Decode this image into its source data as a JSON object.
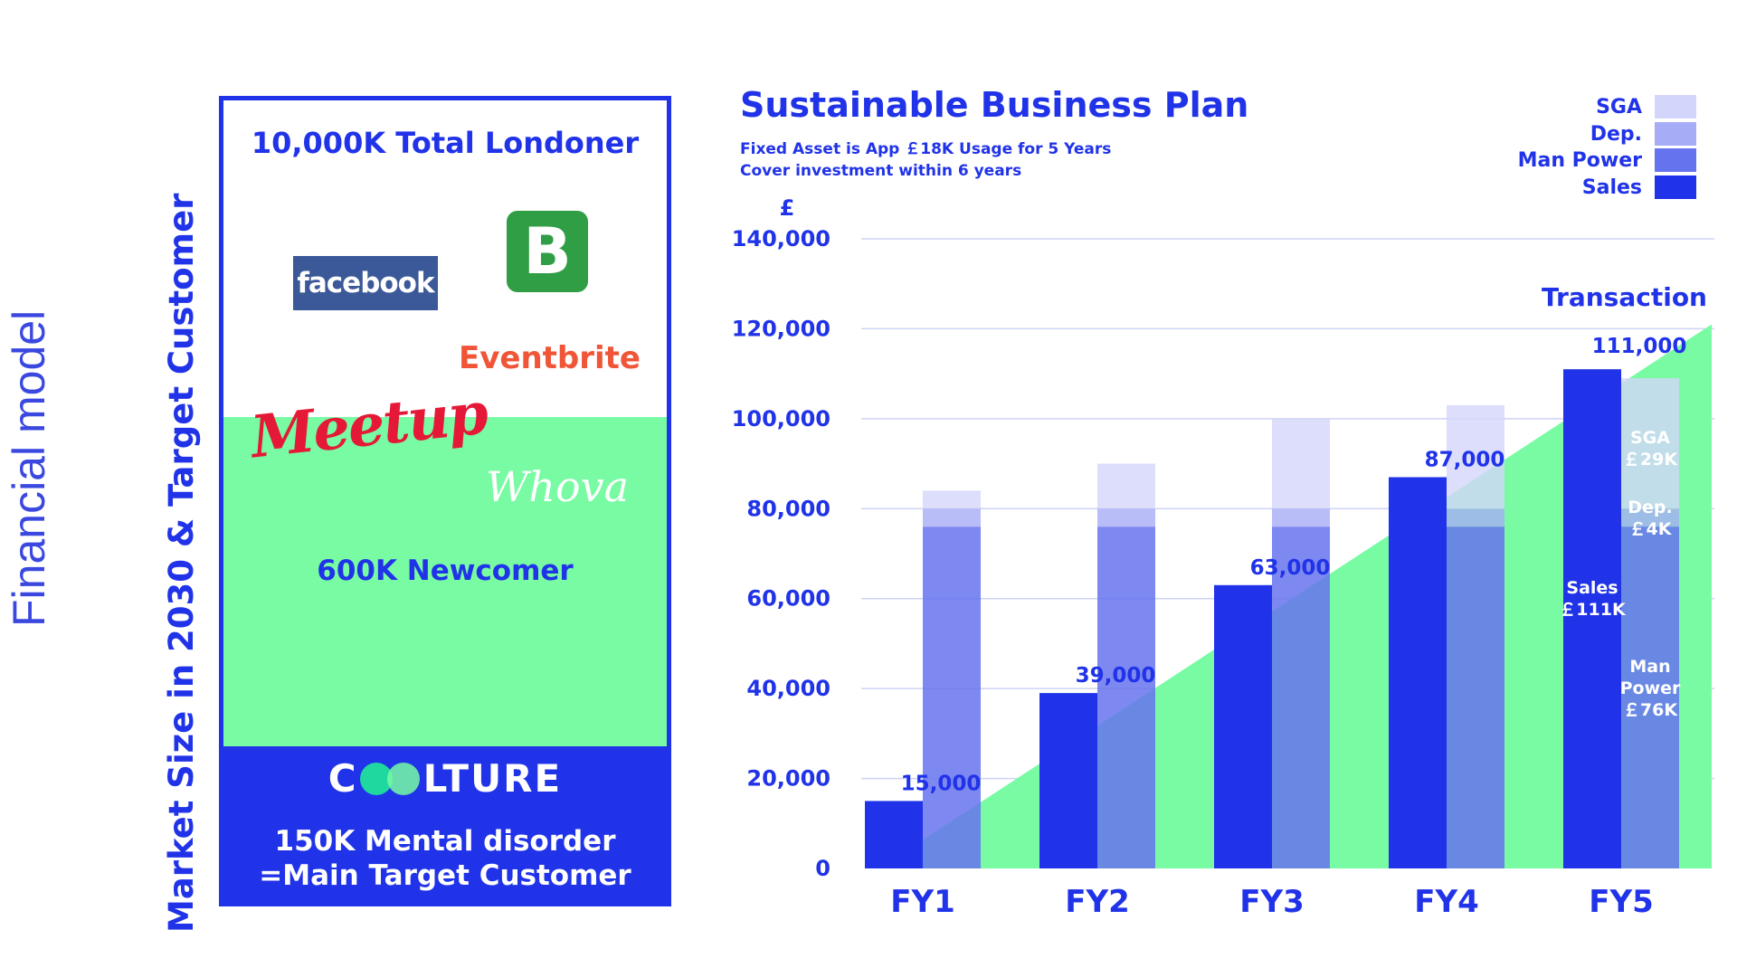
{
  "side_title": "Financial model",
  "market": {
    "vertical_label": "Market Size in 2030 & Target Customer",
    "total": "10,000K Total Londoner",
    "newcomer": "600K Newcomer",
    "brand": {
      "pre": "C",
      "post": "LTURE"
    },
    "target_line1": "150K Mental disorder",
    "target_line2": "=Main Target Customer",
    "logos": {
      "facebook": "facebook",
      "b": "B",
      "eventbrite": "Eventbrite",
      "meetup": "Meetup",
      "whova": "Whova"
    }
  },
  "header": {
    "title": "Sustainable Business Plan",
    "sub1": "Fixed Asset is App ￡18K Usage for 5 Years",
    "sub2": "Cover investment within 6 years"
  },
  "legend": [
    {
      "label": "SGA",
      "color": "#d3d6fa"
    },
    {
      "label": "Dep.",
      "color": "#a6adf6"
    },
    {
      "label": "Man Power",
      "color": "#6673ee"
    },
    {
      "label": "Sales",
      "color": "#2033e8"
    }
  ],
  "colors": {
    "sales": "#2033e8",
    "man_power": "#6673ee",
    "dep": "#a6adf6",
    "sga": "#d3d6fa",
    "transaction": "#78fba3"
  },
  "chart_data": {
    "type": "bar",
    "categories": [
      "FY1",
      "FY2",
      "FY3",
      "FY4",
      "FY5"
    ],
    "y_unit": "£",
    "ylim": [
      0,
      140000
    ],
    "yticks": [
      0,
      20000,
      40000,
      60000,
      80000,
      100000,
      120000,
      140000
    ],
    "ytick_labels": [
      "0",
      "20,000",
      "40,000",
      "60,000",
      "80,000",
      "100,000",
      "120,000",
      "140,000"
    ],
    "grid": true,
    "legend_position": "top-right",
    "series": [
      {
        "name": "Sales",
        "values": [
          15000,
          39000,
          63000,
          87000,
          111000
        ]
      },
      {
        "name": "Man Power",
        "values": [
          76000,
          76000,
          76000,
          76000,
          76000
        ]
      },
      {
        "name": "Dep.",
        "values": [
          4000,
          4000,
          4000,
          4000,
          4000
        ]
      },
      {
        "name": "SGA",
        "values": [
          4000,
          10000,
          20000,
          23000,
          29000
        ]
      }
    ],
    "sales_labels": [
      "15,000",
      "39,000",
      "63,000",
      "87,000",
      "111,000"
    ],
    "transaction": {
      "label": "Transaction",
      "x": [
        "FY1",
        "FY5"
      ],
      "values": [
        0,
        121000
      ]
    },
    "annotations": {
      "sga": [
        "SGA",
        "￡29K"
      ],
      "dep": [
        "Dep.",
        "￡4K"
      ],
      "sales": [
        "Sales",
        "￡111K"
      ],
      "man_power": [
        "Man",
        "Power",
        "￡76K"
      ]
    }
  }
}
